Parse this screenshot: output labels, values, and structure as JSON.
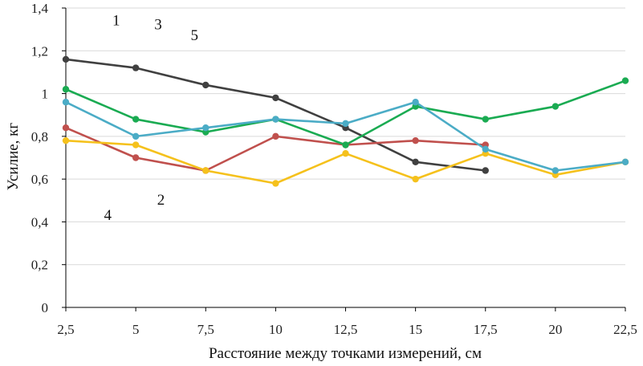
{
  "chart_data": {
    "type": "line",
    "xlabel": "Расстояние между точками измерений, см",
    "ylabel": "Усилие, кг",
    "x_ticks": [
      "2,5",
      "5",
      "7,5",
      "10",
      "12,5",
      "15",
      "17,5",
      "20",
      "22,5"
    ],
    "y_ticks": [
      "0",
      "0,2",
      "0,4",
      "0,6",
      "0,8",
      "1",
      "1,2",
      "1,4"
    ],
    "xlim": [
      2.5,
      22.5
    ],
    "ylim": [
      0,
      1.4
    ],
    "grid": "horizontal",
    "legend": "none",
    "series": [
      {
        "name": "1",
        "color": "#404040",
        "x": [
          2.5,
          5,
          7.5,
          10,
          12.5,
          15,
          17.5
        ],
        "y": [
          1.16,
          1.12,
          1.04,
          0.98,
          0.84,
          0.68,
          0.64
        ]
      },
      {
        "name": "2",
        "color": "#c0504d",
        "x": [
          2.5,
          5,
          7.5,
          10,
          12.5,
          15,
          17.5
        ],
        "y": [
          0.84,
          0.7,
          0.64,
          0.8,
          0.76,
          0.78,
          0.76
        ]
      },
      {
        "name": "3",
        "color": "#1aab52",
        "x": [
          2.5,
          5,
          7.5,
          10,
          12.5,
          15,
          17.5,
          20,
          22.5
        ],
        "y": [
          1.02,
          0.88,
          0.82,
          0.88,
          0.76,
          0.94,
          0.88,
          0.94,
          1.06
        ]
      },
      {
        "name": "4",
        "color": "#f5c11c",
        "x": [
          2.5,
          5,
          7.5,
          10,
          12.5,
          15,
          17.5,
          20,
          22.5
        ],
        "y": [
          0.78,
          0.76,
          0.64,
          0.58,
          0.72,
          0.6,
          0.72,
          0.62,
          0.68
        ]
      },
      {
        "name": "5",
        "color": "#4bacc6",
        "x": [
          2.5,
          5,
          7.5,
          10,
          12.5,
          15,
          17.5,
          20,
          22.5
        ],
        "y": [
          0.96,
          0.8,
          0.84,
          0.88,
          0.86,
          0.96,
          0.74,
          0.64,
          0.68
        ]
      }
    ],
    "annotations": [
      {
        "text": "1",
        "x": 4.3,
        "y": 1.32
      },
      {
        "text": "3",
        "x": 5.8,
        "y": 1.3
      },
      {
        "text": "5",
        "x": 7.1,
        "y": 1.25
      },
      {
        "text": "4",
        "x": 4.0,
        "y": 0.41
      },
      {
        "text": "2",
        "x": 5.9,
        "y": 0.48
      }
    ]
  }
}
